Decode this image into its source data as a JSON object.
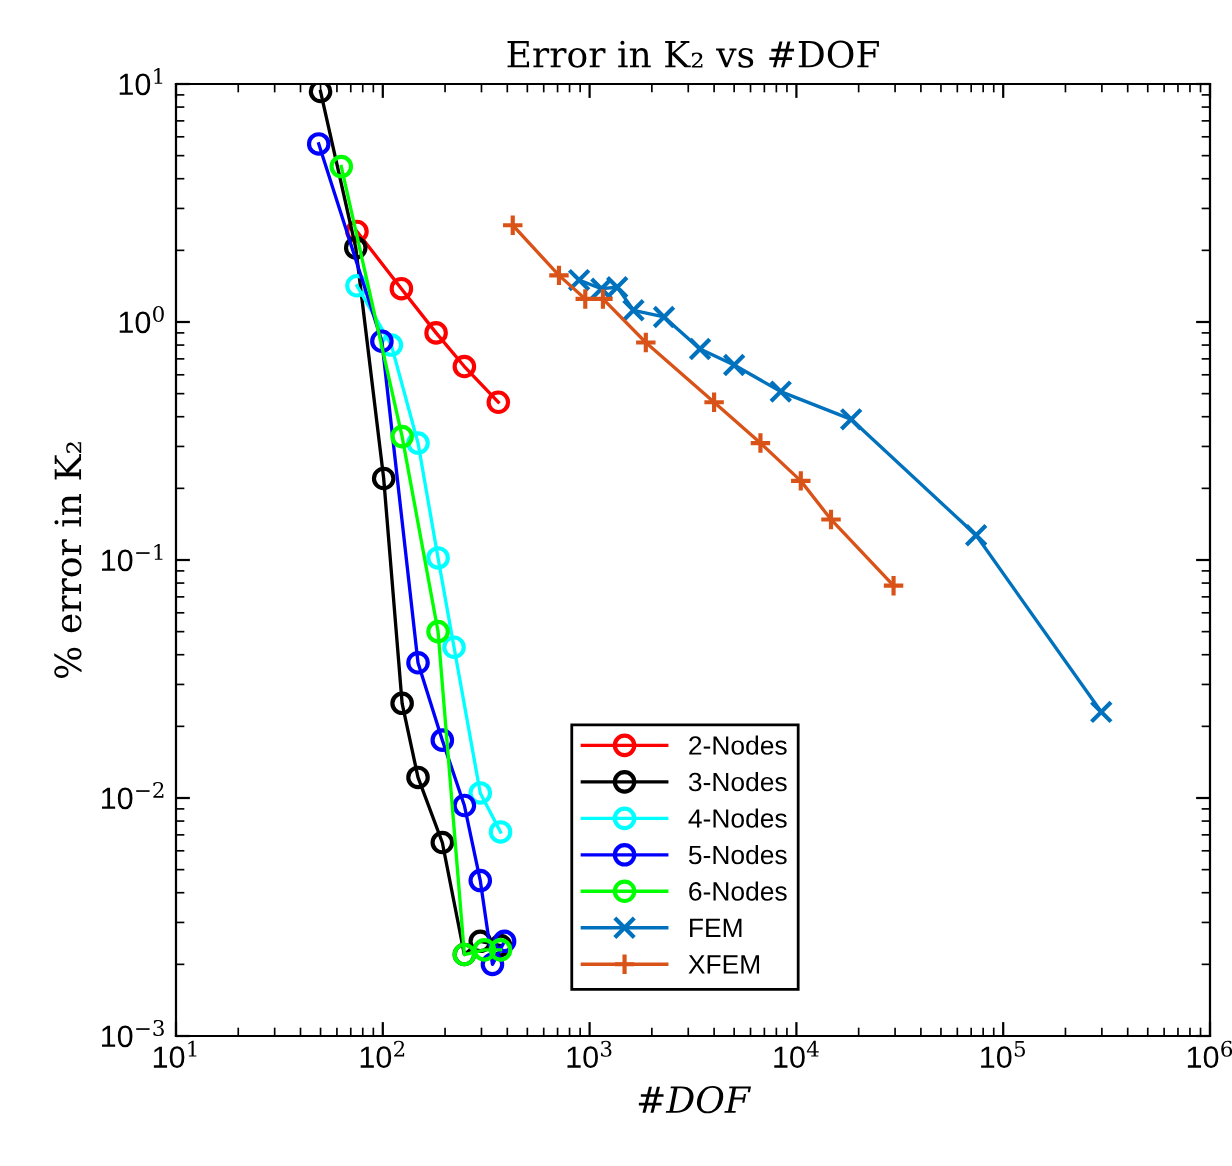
{
  "chart_data": {
    "type": "line",
    "title": "Error in K₂ vs #DOF",
    "xlabel": "#DOF",
    "ylabel": "% error in K₂",
    "log": "xy",
    "xlim": [
      10,
      1000000
    ],
    "ylim": [
      0.001,
      10
    ],
    "xticks": [
      {
        "value": 10,
        "label": "10$^{1}$"
      },
      {
        "value": 100,
        "label": "10$^{2}$"
      },
      {
        "value": 1000,
        "label": "10$^{3}$"
      },
      {
        "value": 10000,
        "label": "10$^{4}$"
      },
      {
        "value": 100000,
        "label": "10$^{5}$"
      },
      {
        "value": 1000000,
        "label": "10$^{6}$"
      }
    ],
    "yticks": [
      {
        "value": 0.001,
        "label": "10$^{−3}$"
      },
      {
        "value": 0.01,
        "label": "10$^{−2}$"
      },
      {
        "value": 0.1,
        "label": "10$^{−1}$"
      },
      {
        "value": 1,
        "label": "10$^{0}$"
      },
      {
        "value": 10,
        "label": "10$^{1}$"
      }
    ],
    "grid": false,
    "legend": "bottom",
    "series": [
      {
        "name": "2-Nodes",
        "color": "#ff0000",
        "marker": "circle",
        "x": [
          75,
          123,
          181,
          248,
          362
        ],
        "values": [
          2.4,
          1.38,
          0.9,
          0.65,
          0.46
        ]
      },
      {
        "name": "3-Nodes",
        "color": "#000000",
        "marker": "circle",
        "x": [
          50,
          74,
          101,
          124,
          148,
          194,
          248,
          296,
          371
        ],
        "values": [
          9.3,
          2.05,
          0.22,
          0.025,
          0.0122,
          0.0065,
          0.0022,
          0.0025,
          0.0024
        ]
      },
      {
        "name": "4-Nodes",
        "color": "#00ffff",
        "marker": "circle",
        "x": [
          75,
          110,
          148,
          185,
          221,
          296,
          371
        ],
        "values": [
          1.42,
          0.8,
          0.31,
          0.102,
          0.043,
          0.0105,
          0.0072
        ]
      },
      {
        "name": "5-Nodes",
        "color": "#0000ff",
        "marker": "circle",
        "x": [
          49,
          99,
          148,
          194,
          248,
          296,
          339,
          388
        ],
        "values": [
          5.6,
          0.83,
          0.037,
          0.0175,
          0.0093,
          0.0045,
          0.002,
          0.0025
        ]
      },
      {
        "name": "6-Nodes",
        "color": "#00ff00",
        "marker": "circle",
        "x": [
          63,
          124,
          185,
          248,
          310,
          371
        ],
        "values": [
          4.5,
          0.33,
          0.05,
          0.0022,
          0.0023,
          0.0023
        ]
      },
      {
        "name": "FEM",
        "color": "#0072bd",
        "marker": "cross",
        "x": [
          890,
          1140,
          1360,
          1630,
          2290,
          3420,
          5000,
          8400,
          18400,
          74000,
          298000
        ],
        "values": [
          1.5,
          1.38,
          1.4,
          1.12,
          1.05,
          0.77,
          0.66,
          0.51,
          0.39,
          0.127,
          0.023
        ]
      },
      {
        "name": "XFEM",
        "color": "#d95319",
        "marker": "plus",
        "x": [
          425,
          711,
          953,
          1160,
          1870,
          4000,
          6700,
          10500,
          14700,
          29500
        ],
        "values": [
          2.55,
          1.57,
          1.25,
          1.25,
          0.82,
          0.46,
          0.31,
          0.215,
          0.148,
          0.078
        ]
      }
    ]
  }
}
